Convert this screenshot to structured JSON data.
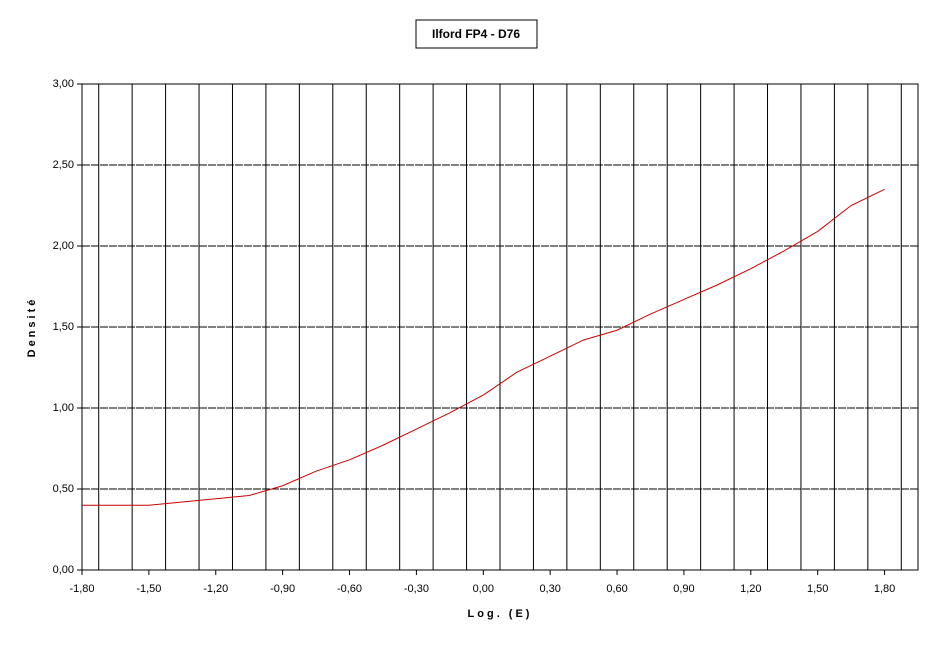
{
  "chart_data": {
    "type": "line",
    "title": "Ilford FP4 - D76",
    "x_label": "Log. (E)",
    "y_label": "Densité",
    "x": [
      -1.8,
      -1.65,
      -1.5,
      -1.35,
      -1.2,
      -1.05,
      -0.9,
      -0.75,
      -0.6,
      -0.45,
      -0.3,
      -0.15,
      0,
      0.15,
      0.3,
      0.45,
      0.6,
      0.75,
      0.9,
      1.05,
      1.2,
      1.35,
      1.5,
      1.65,
      1.8
    ],
    "series": [
      {
        "color": "#cc0000",
        "values": [
          0.4,
          0.4,
          0.4,
          0.42,
          0.44,
          0.46,
          0.52,
          0.61,
          0.68,
          0.77,
          0.87,
          0.97,
          1.08,
          1.22,
          1.32,
          1.42,
          1.48,
          1.58,
          1.67,
          1.76,
          1.86,
          1.97,
          2.09,
          2.25,
          2.35
        ]
      }
    ],
    "xlim": [
      -1.8,
      1.95
    ],
    "ylim": [
      0,
      3
    ],
    "xticks": [
      {
        "value": -1.8,
        "label": "-1,80"
      },
      {
        "value": -1.5,
        "label": "-1,50"
      },
      {
        "value": -1.2,
        "label": "-1,20"
      },
      {
        "value": -0.9,
        "label": "-0,90"
      },
      {
        "value": -0.6,
        "label": "-0,60"
      },
      {
        "value": -0.3,
        "label": "-0,30"
      },
      {
        "value": 0,
        "label": "0,00"
      },
      {
        "value": 0.3,
        "label": "0,30"
      },
      {
        "value": 0.6,
        "label": "0,60"
      },
      {
        "value": 0.9,
        "label": "0,90"
      },
      {
        "value": 1.2,
        "label": "1,20"
      },
      {
        "value": 1.5,
        "label": "1,50"
      },
      {
        "value": 1.8,
        "label": "1,80"
      }
    ],
    "yticks": [
      {
        "value": 0,
        "label": "0,00"
      },
      {
        "value": 0.5,
        "label": "0,50"
      },
      {
        "value": 1,
        "label": "1,00"
      },
      {
        "value": 1.5,
        "label": "1,50"
      },
      {
        "value": 2,
        "label": "2,00"
      },
      {
        "value": 2.5,
        "label": "2,50"
      },
      {
        "value": 3,
        "label": "3,00"
      }
    ],
    "xgrid": [
      -1.725,
      -1.575,
      -1.425,
      -1.275,
      -1.125,
      -0.975,
      -0.825,
      -0.675,
      -0.525,
      -0.375,
      -0.225,
      -0.075,
      0.075,
      0.225,
      0.375,
      0.525,
      0.675,
      0.825,
      0.975,
      1.125,
      1.275,
      1.425,
      1.575,
      1.725,
      1.875
    ],
    "grid": true
  }
}
